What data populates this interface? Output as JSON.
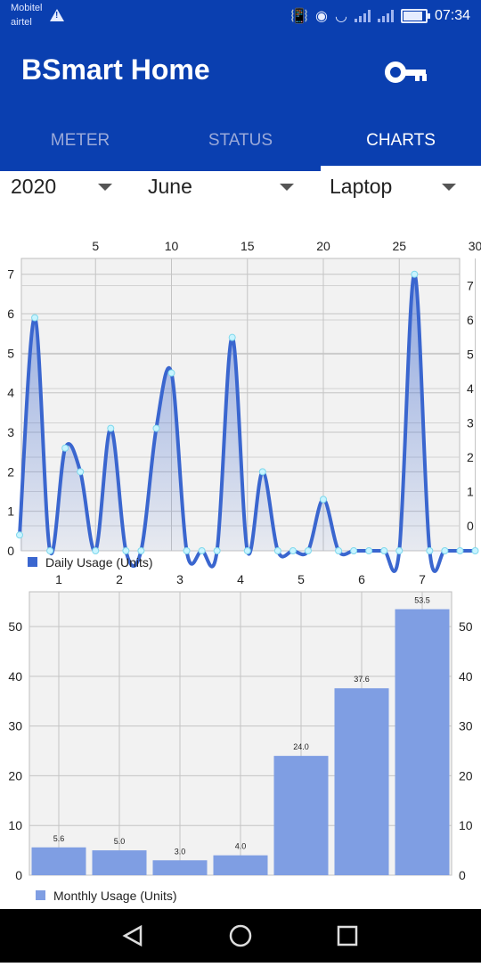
{
  "status_bar": {
    "carrier_1": "Mobitel",
    "carrier_2": "airtel",
    "time": "07:34",
    "icons": [
      "warning-icon",
      "vibrate-icon",
      "eye-icon",
      "wifi-icon",
      "signal-icon",
      "signal-icon",
      "battery-icon"
    ]
  },
  "app": {
    "title": "BSmart Home",
    "key_icon": "key-icon"
  },
  "tabs": [
    {
      "label": "METER"
    },
    {
      "label": "STATUS"
    },
    {
      "label": "CHARTS",
      "active": true
    }
  ],
  "filters": {
    "year": "2020",
    "month": "June",
    "device": "Laptop"
  },
  "colors": {
    "primary": "#0a3fb0",
    "line": "#3a66cf",
    "bar": "#7f9ee3"
  },
  "chart_data": [
    {
      "type": "area",
      "legend": "Daily Usage (Units)",
      "x": [
        1,
        2,
        3,
        4,
        5,
        6,
        7,
        8,
        9,
        10,
        11,
        12,
        13,
        14,
        15,
        16,
        17,
        18,
        19,
        20,
        21,
        22,
        23,
        24,
        25,
        26,
        27,
        28,
        29,
        30
      ],
      "x_ticks": [
        5,
        10,
        15,
        20,
        25,
        30
      ],
      "y_ticks": [
        0,
        1,
        2,
        3,
        4,
        5,
        6,
        7
      ],
      "values": [
        5.9,
        0,
        2.6,
        2.0,
        0,
        3.1,
        0,
        0,
        3.1,
        4.5,
        0,
        0,
        0,
        5.4,
        0,
        2.0,
        0,
        0,
        0,
        1.3,
        0,
        0,
        0,
        0,
        0,
        7.0,
        0,
        0,
        0,
        0
      ],
      "x0_value": 0.4,
      "ylim": [
        0,
        7.4
      ],
      "smooth": true,
      "grid": true
    },
    {
      "type": "bar",
      "legend": "Monthly Usage (Units)",
      "categories": [
        "1",
        "2",
        "3",
        "4",
        "5",
        "6",
        "7"
      ],
      "values": [
        5.6,
        5.0,
        3.0,
        4.0,
        24.0,
        37.6,
        53.5
      ],
      "value_labels": [
        "5.6",
        "5.0",
        "3.0",
        "4.0",
        "24.0",
        "37.6",
        "53.5"
      ],
      "y_ticks": [
        0,
        10,
        20,
        30,
        40,
        50
      ],
      "ylim": [
        0,
        57
      ],
      "grid": true
    }
  ],
  "nav": {
    "back_icon": "back-icon",
    "home_icon": "home-icon",
    "recents_icon": "recents-icon"
  }
}
